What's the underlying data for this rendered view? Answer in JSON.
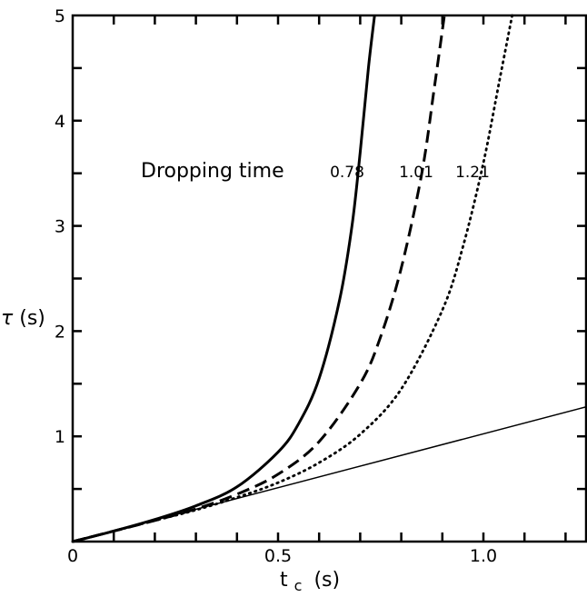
{
  "chart_data": {
    "type": "line",
    "xlabel": "t",
    "xlabel_sub": "c",
    "xlabel_unit": "(s)",
    "ylabel_symbol": "τ",
    "ylabel_unit": "(s)",
    "xlim": [
      0,
      1.25
    ],
    "ylim": [
      0,
      5
    ],
    "x_ticks": [
      {
        "value": 0,
        "label": "0"
      },
      {
        "value": 0.5,
        "label": "0.5"
      },
      {
        "value": 1.0,
        "label": "1.0"
      }
    ],
    "y_ticks": [
      {
        "value": 1,
        "label": "1"
      },
      {
        "value": 2,
        "label": "2"
      },
      {
        "value": 3,
        "label": "3"
      },
      {
        "value": 4,
        "label": "4"
      },
      {
        "value": 5,
        "label": "5"
      }
    ],
    "grid": false,
    "annotation": "Dropping time",
    "series": [
      {
        "name": "0.78",
        "line_style": "solid-thick",
        "points": [
          [
            0,
            0
          ],
          [
            0.1,
            0.1
          ],
          [
            0.2,
            0.21
          ],
          [
            0.3,
            0.34
          ],
          [
            0.4,
            0.52
          ],
          [
            0.5,
            0.85
          ],
          [
            0.55,
            1.12
          ],
          [
            0.6,
            1.55
          ],
          [
            0.65,
            2.3
          ],
          [
            0.68,
            3.0
          ],
          [
            0.7,
            3.7
          ],
          [
            0.72,
            4.5
          ],
          [
            0.735,
            5.0
          ]
        ]
      },
      {
        "name": "1.01",
        "line_style": "dashed",
        "points": [
          [
            0,
            0
          ],
          [
            0.1,
            0.1
          ],
          [
            0.2,
            0.2
          ],
          [
            0.3,
            0.31
          ],
          [
            0.4,
            0.45
          ],
          [
            0.5,
            0.64
          ],
          [
            0.6,
            0.95
          ],
          [
            0.7,
            1.5
          ],
          [
            0.75,
            1.95
          ],
          [
            0.8,
            2.6
          ],
          [
            0.85,
            3.5
          ],
          [
            0.88,
            4.3
          ],
          [
            0.905,
            5.0
          ]
        ]
      },
      {
        "name": "1.21",
        "line_style": "dotted",
        "points": [
          [
            0,
            0
          ],
          [
            0.1,
            0.1
          ],
          [
            0.2,
            0.2
          ],
          [
            0.3,
            0.3
          ],
          [
            0.4,
            0.42
          ],
          [
            0.5,
            0.56
          ],
          [
            0.6,
            0.75
          ],
          [
            0.7,
            1.02
          ],
          [
            0.8,
            1.45
          ],
          [
            0.9,
            2.2
          ],
          [
            0.95,
            2.8
          ],
          [
            1.0,
            3.6
          ],
          [
            1.04,
            4.4
          ],
          [
            1.07,
            5.0
          ]
        ]
      },
      {
        "name": "",
        "line_style": "solid-thin",
        "points": [
          [
            0,
            0
          ],
          [
            1.25,
            1.28
          ]
        ]
      }
    ]
  }
}
